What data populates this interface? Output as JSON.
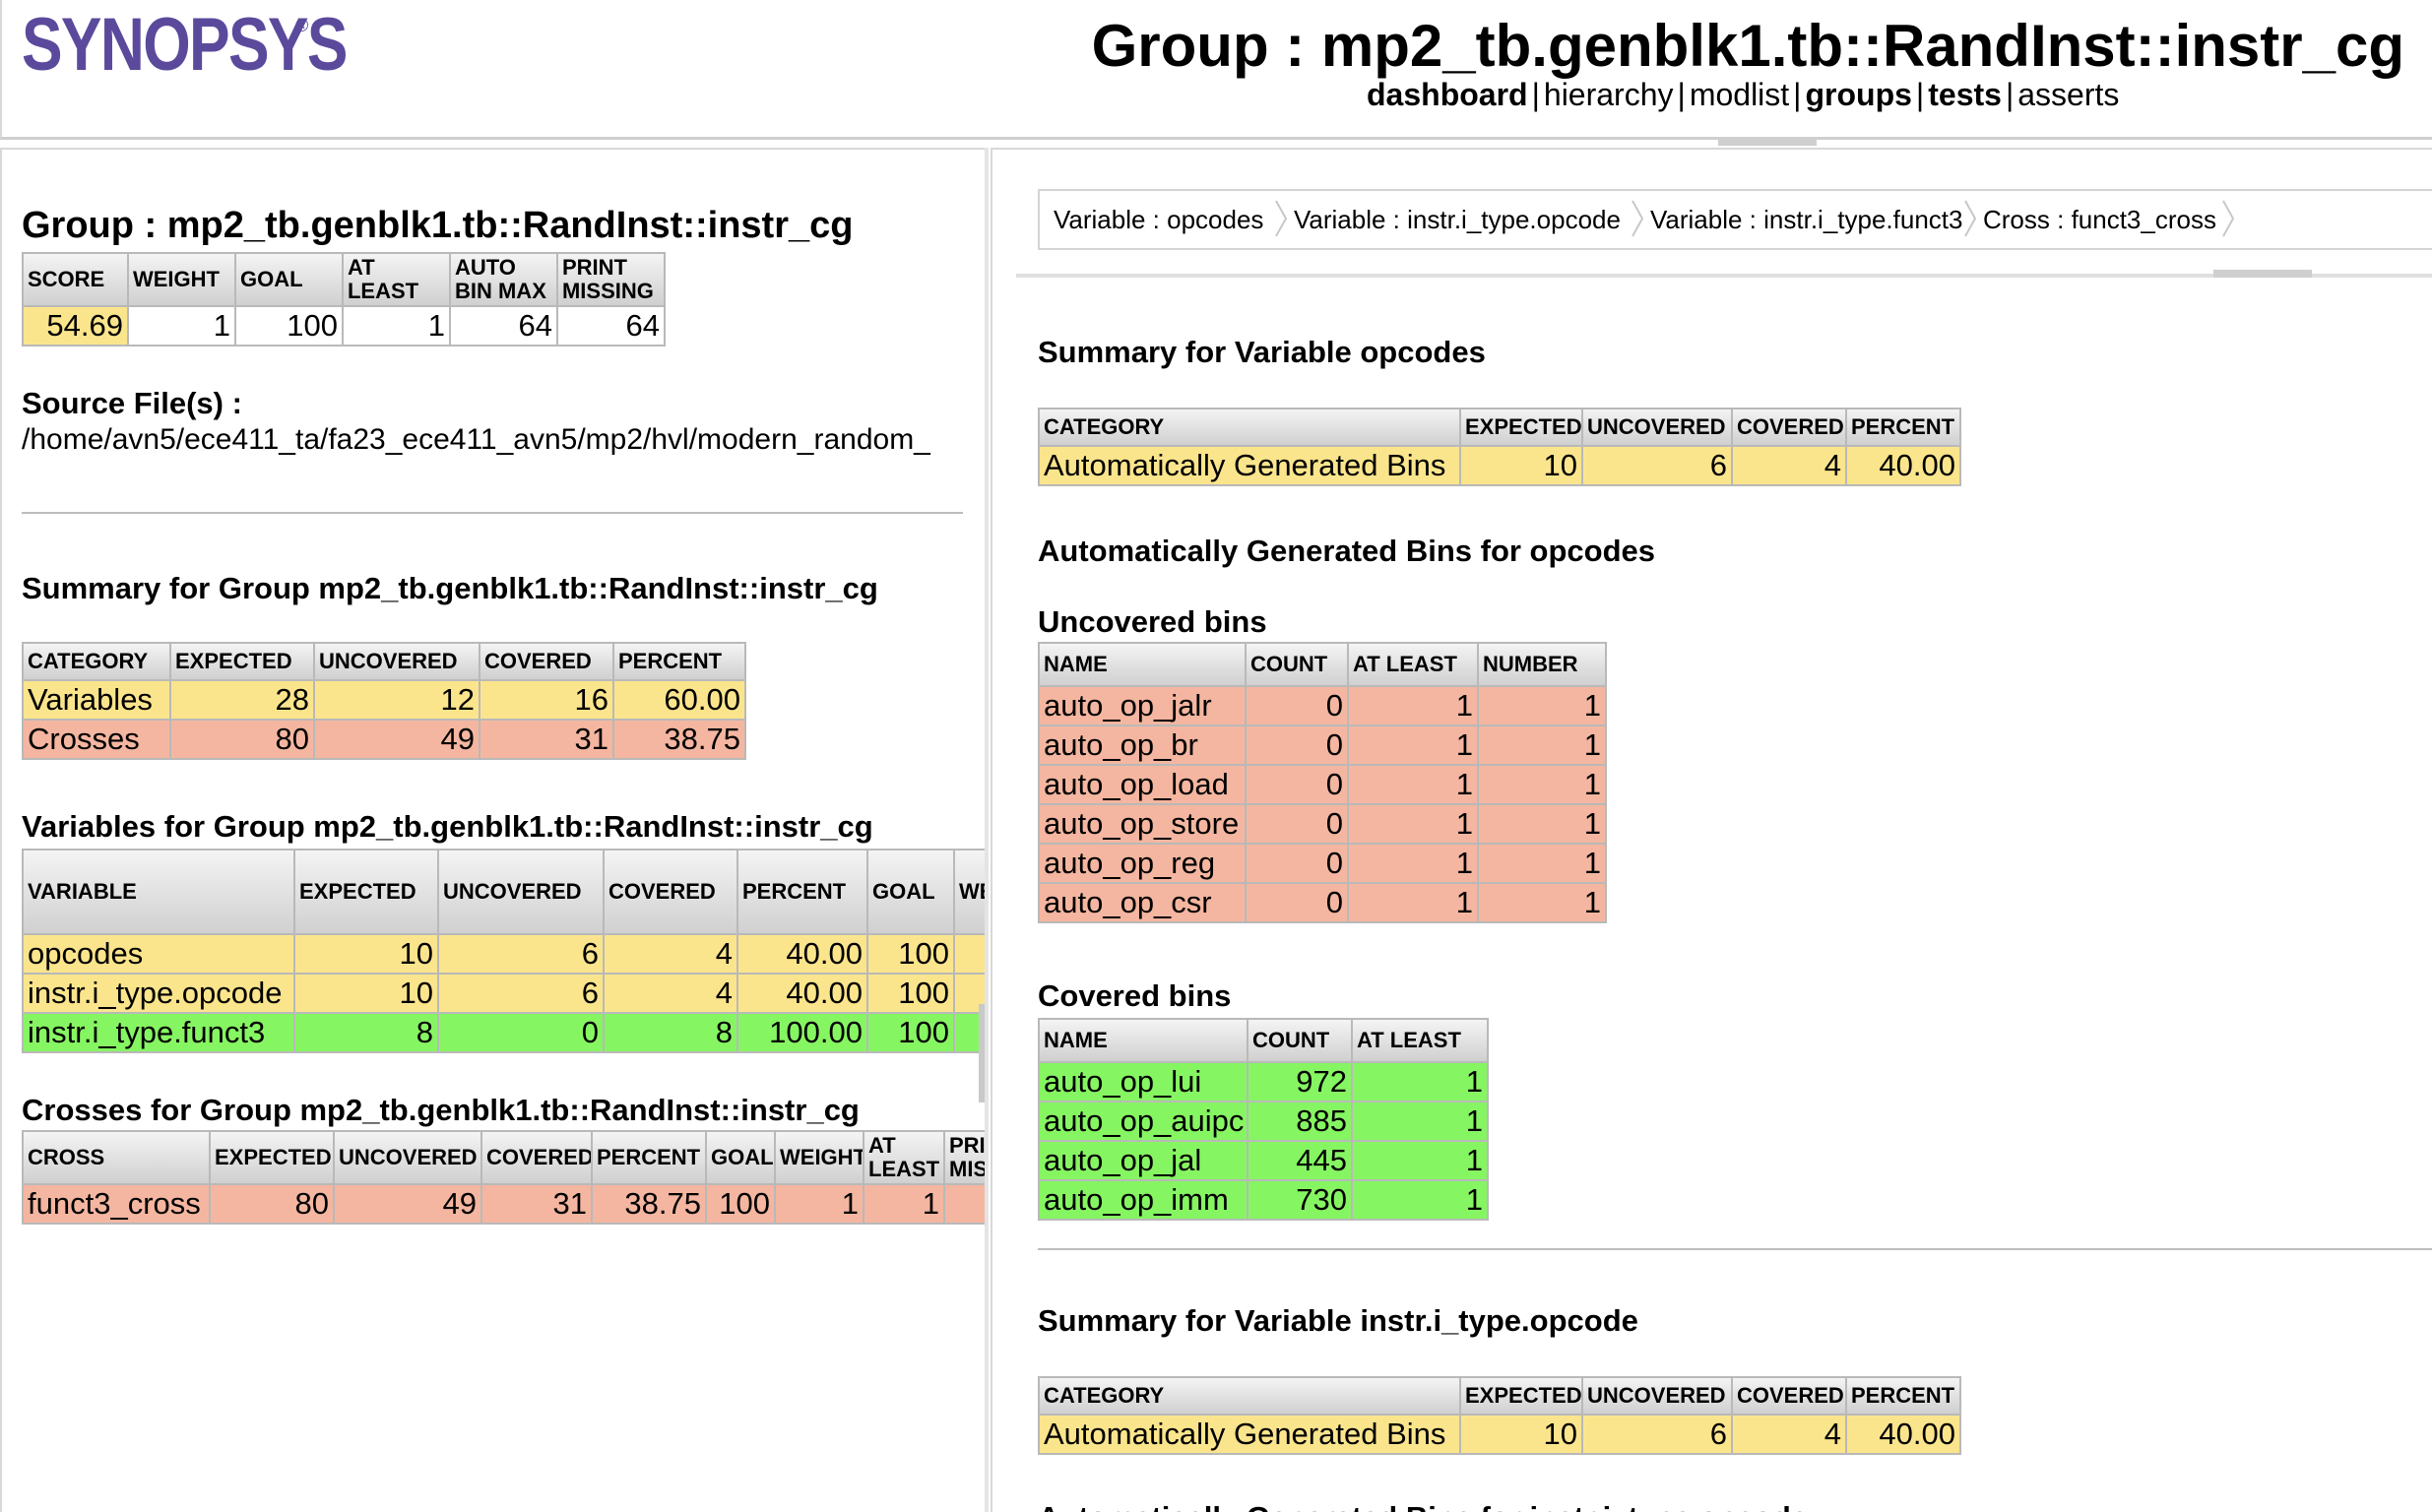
{
  "header": {
    "logo": "SYNOPSYS",
    "logo_mark": "®",
    "title": "Group : mp2_tb.genblk1.tb::RandInst::instr_cg",
    "nav": [
      {
        "label": "dashboard",
        "bold": true
      },
      {
        "label": "hierarchy",
        "bold": false
      },
      {
        "label": "modlist",
        "bold": false
      },
      {
        "label": "groups",
        "bold": true
      },
      {
        "label": "tests",
        "bold": true
      },
      {
        "label": "asserts",
        "bold": false
      }
    ],
    "nav_sep": "|"
  },
  "left": {
    "title": "Group : mp2_tb.genblk1.tb::RandInst::instr_cg",
    "score_table": {
      "headers": [
        "SCORE",
        "WEIGHT",
        "GOAL",
        "AT LEAST",
        "AUTO BIN MAX",
        "PRINT MISSING"
      ],
      "row": [
        "54.69",
        "1",
        "100",
        "1",
        "64",
        "64"
      ]
    },
    "source_label": "Source File(s) :",
    "source_path": "/home/avn5/ece411_ta/fa23_ece411_avn5/mp2/hvl/modern_random_",
    "summary_title": "Summary for Group mp2_tb.genblk1.tb::RandInst::instr_cg",
    "summary_table": {
      "headers": [
        "CATEGORY",
        "EXPECTED",
        "UNCOVERED",
        "COVERED",
        "PERCENT"
      ],
      "rows": [
        {
          "cells": [
            "Variables",
            "28",
            "12",
            "16",
            "60.00"
          ],
          "status": "y"
        },
        {
          "cells": [
            "Crosses",
            "80",
            "49",
            "31",
            "38.75"
          ],
          "status": "r"
        }
      ]
    },
    "variables_title": "Variables for Group mp2_tb.genblk1.tb::RandInst::instr_cg",
    "variables_table": {
      "headers": [
        "VARIABLE",
        "EXPECTED",
        "UNCOVERED",
        "COVERED",
        "PERCENT",
        "GOAL",
        "WE"
      ],
      "rows": [
        {
          "cells": [
            "opcodes",
            "10",
            "6",
            "4",
            "40.00",
            "100",
            ""
          ],
          "status": "y"
        },
        {
          "cells": [
            "instr.i_type.opcode",
            "10",
            "6",
            "4",
            "40.00",
            "100",
            ""
          ],
          "status": "y"
        },
        {
          "cells": [
            "instr.i_type.funct3",
            "8",
            "0",
            "8",
            "100.00",
            "100",
            ""
          ],
          "status": "g"
        }
      ]
    },
    "crosses_title": "Crosses for Group mp2_tb.genblk1.tb::RandInst::instr_cg",
    "crosses_table": {
      "headers": [
        "CROSS",
        "EXPECTED",
        "UNCOVERED",
        "COVERED",
        "PERCENT",
        "GOAL",
        "WEIGHT",
        "AT LEAST",
        "PRI MIS"
      ],
      "rows": [
        {
          "cells": [
            "funct3_cross",
            "80",
            "49",
            "31",
            "38.75",
            "100",
            "1",
            "1",
            ""
          ],
          "status": "r"
        }
      ]
    }
  },
  "right": {
    "breadcrumb": [
      "Variable : opcodes",
      "Variable : instr.i_type.opcode",
      "Variable : instr.i_type.funct3",
      "Cross : funct3_cross"
    ],
    "opcodes_summary_title": "Summary for Variable opcodes",
    "summary_headers": [
      "CATEGORY",
      "EXPECTED",
      "UNCOVERED",
      "COVERED",
      "PERCENT"
    ],
    "opcodes_summary_row": [
      "Automatically Generated Bins",
      "10",
      "6",
      "4",
      "40.00"
    ],
    "auto_bins_title": "Automatically Generated Bins for opcodes",
    "uncovered_title": "Uncovered bins",
    "uncovered_table": {
      "headers": [
        "NAME",
        "COUNT",
        "AT LEAST",
        "NUMBER"
      ],
      "rows": [
        [
          "auto_op_jalr",
          "0",
          "1",
          "1"
        ],
        [
          "auto_op_br",
          "0",
          "1",
          "1"
        ],
        [
          "auto_op_load",
          "0",
          "1",
          "1"
        ],
        [
          "auto_op_store",
          "0",
          "1",
          "1"
        ],
        [
          "auto_op_reg",
          "0",
          "1",
          "1"
        ],
        [
          "auto_op_csr",
          "0",
          "1",
          "1"
        ]
      ]
    },
    "covered_title": "Covered bins",
    "covered_table": {
      "headers": [
        "NAME",
        "COUNT",
        "AT LEAST"
      ],
      "rows": [
        [
          "auto_op_lui",
          "972",
          "1"
        ],
        [
          "auto_op_auipc",
          "885",
          "1"
        ],
        [
          "auto_op_jal",
          "445",
          "1"
        ],
        [
          "auto_op_imm",
          "730",
          "1"
        ]
      ]
    },
    "opcode_summary_title": "Summary for Variable instr.i_type.opcode",
    "opcode_summary_row": [
      "Automatically Generated Bins",
      "10",
      "6",
      "4",
      "40.00"
    ],
    "next_title": "Automatically Generated Bins for instr.i_type.opcode"
  },
  "colors": {
    "yellow": "#fbe58c",
    "red": "#f4b6a0",
    "green": "#86f562",
    "logo": "#5b4a9c"
  }
}
